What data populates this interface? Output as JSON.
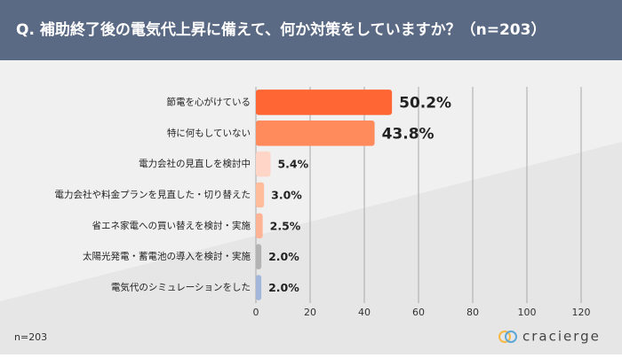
{
  "chart_data": {
    "type": "hbar",
    "title": "Q. 補助終了後の電気代上昇に備えて、何か対策をしていますか？（n=203）",
    "categories": [
      "節電を心がけている",
      "特に何もしていない",
      "電力会社の見直しを検討中",
      "電力会社や料金プランを見直した・切り替えた",
      "省エネ家電への買い替えを検討・実施",
      "太陽光発電・蓄電池の導入を検討・実施",
      "電気代のシミュレーションをした"
    ],
    "values": [
      50.2,
      43.8,
      5.4,
      3.0,
      2.5,
      2.0,
      2.0
    ],
    "value_labels": [
      "50.2%",
      "43.8%",
      "5.4%",
      "3.0%",
      "2.5%",
      "2.0%",
      "2.0%"
    ],
    "colors": [
      "#ff6633",
      "#ff8a5c",
      "#ffd5c8",
      "#ffbd9c",
      "#ffb395",
      "#b3b3b3",
      "#a3b7dc"
    ],
    "xlim": [
      0,
      120
    ],
    "xticks": [
      0,
      20,
      40,
      60,
      80,
      100,
      120
    ],
    "grid": true
  },
  "footer": {
    "note": "n=203",
    "logo": "cracierge"
  }
}
